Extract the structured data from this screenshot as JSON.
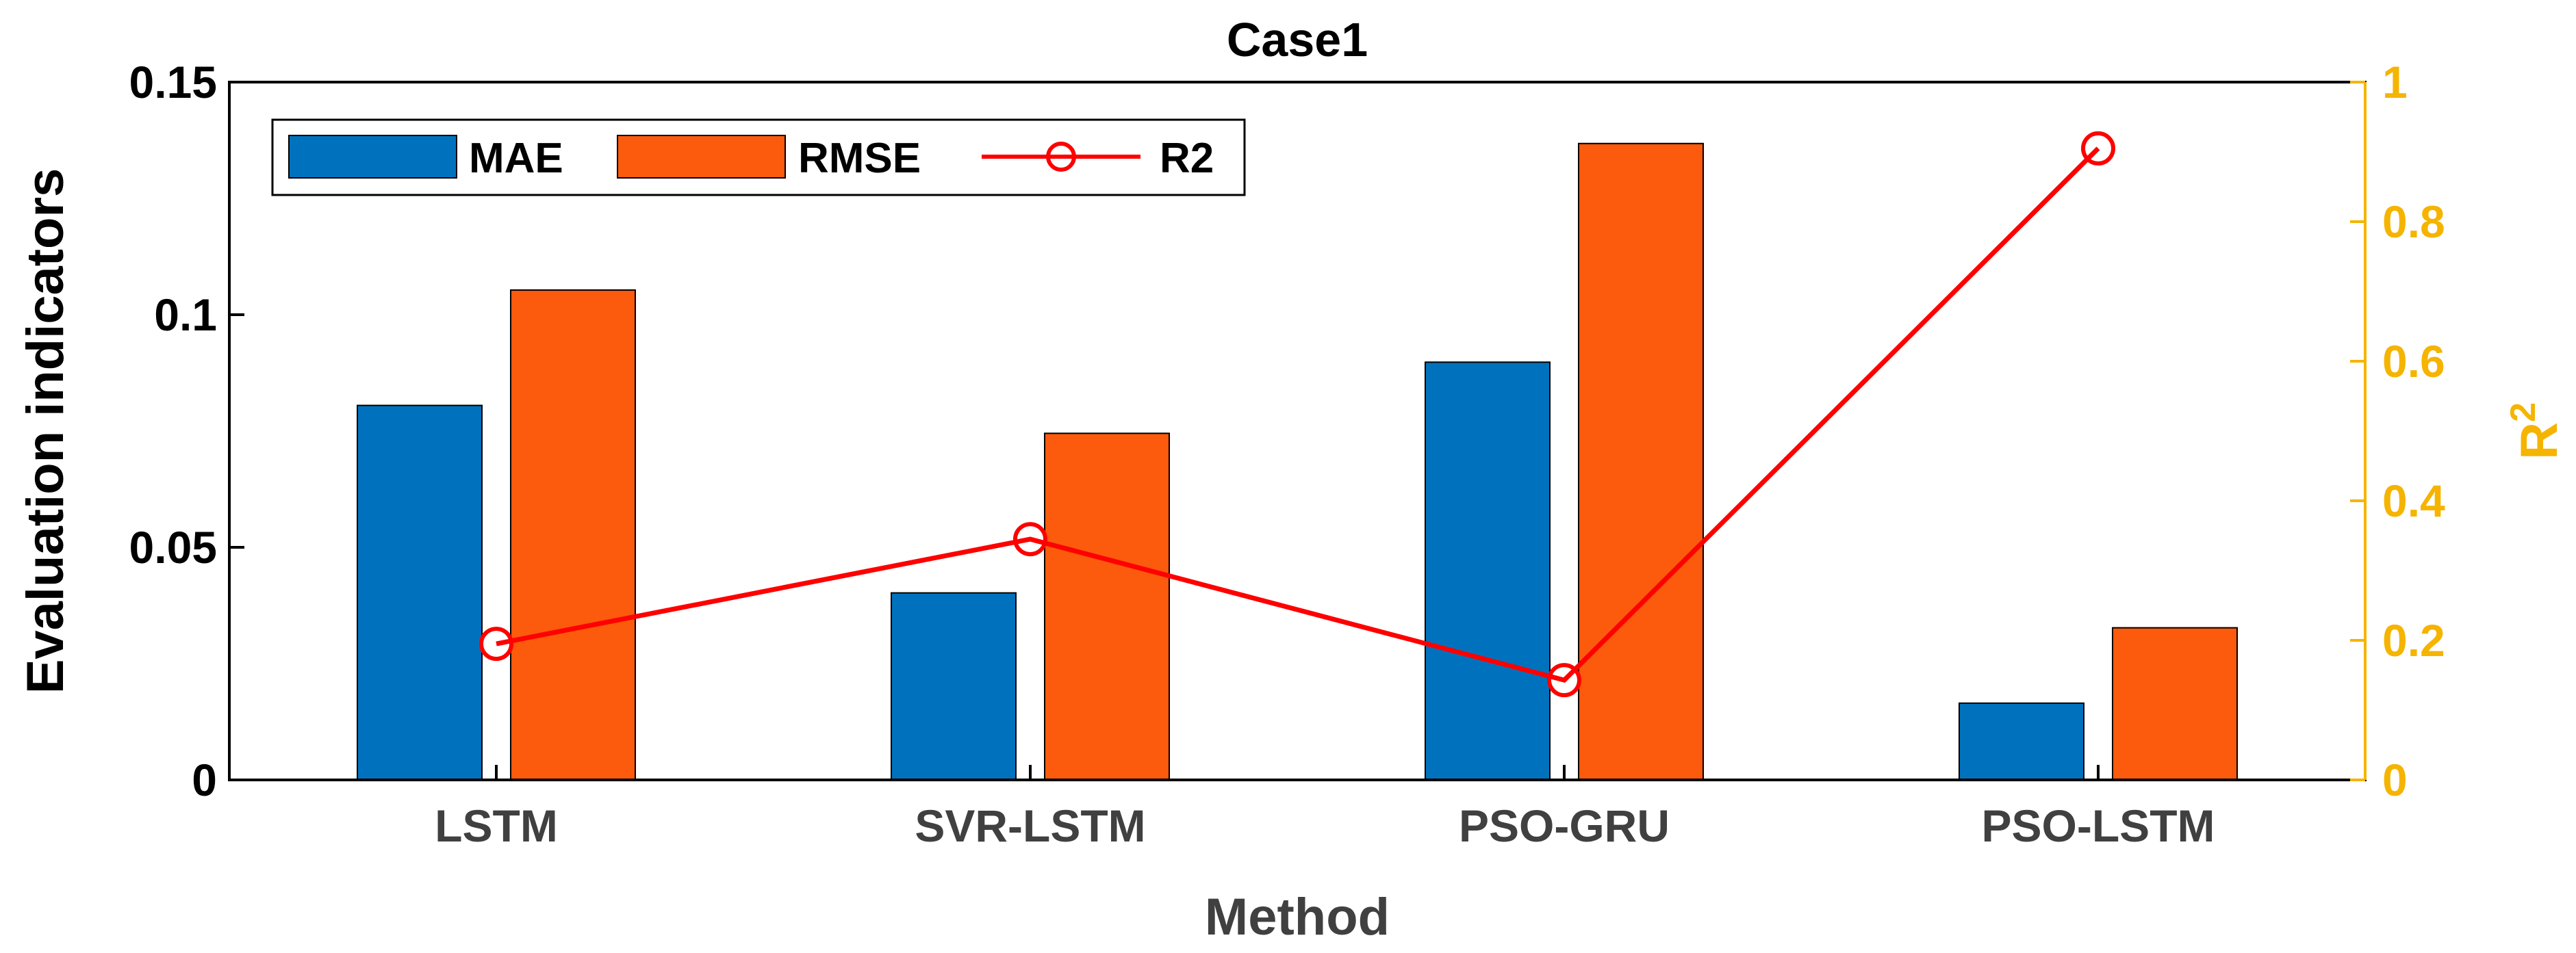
{
  "chart_data": {
    "type": "bar",
    "title": "Case1",
    "xlabel": "Method",
    "ylabel": "Evaluation indicators",
    "y2label_base": "R",
    "y2label_sup": "2",
    "categories": [
      "LSTM",
      "SVR-LSTM",
      "PSO-GRU",
      "PSO-LSTM"
    ],
    "ylim": [
      0,
      0.15
    ],
    "y_ticks": [
      "0",
      "0.05",
      "0.1",
      "0.15"
    ],
    "y2lim": [
      0,
      1
    ],
    "y2_ticks": [
      "0",
      "0.2",
      "0.4",
      "0.6",
      "0.8",
      "1"
    ],
    "series": [
      {
        "name": "MAE",
        "axis": "left",
        "kind": "bar",
        "color": "#0072BD",
        "values": [
          0.0805,
          0.0402,
          0.0898,
          0.0165
        ]
      },
      {
        "name": "RMSE",
        "axis": "left",
        "kind": "bar",
        "color": "#FC5A0C",
        "values": [
          0.1053,
          0.0745,
          0.1368,
          0.0327
        ]
      },
      {
        "name": "R2",
        "axis": "right",
        "kind": "line",
        "color": "#FF0000",
        "values": [
          0.195,
          0.345,
          0.143,
          0.905
        ]
      }
    ],
    "legend_position": "top-left",
    "right_axis_color": "#F5B400"
  }
}
